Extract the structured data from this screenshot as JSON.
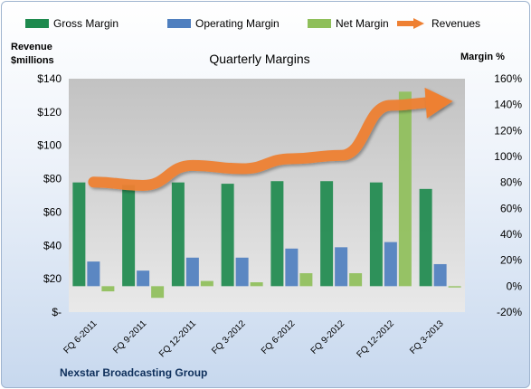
{
  "chart_data": {
    "type": "bar",
    "title": "Quarterly Margins",
    "footer": "Nexstar Broadcasting Group",
    "left_axis_title_line1": "Revenue",
    "left_axis_title_line2": "$millions",
    "right_axis_title": "Margin %",
    "categories": [
      "FQ 6-2011",
      "FQ 9-2011",
      "FQ 12-2011",
      "FQ 3-2012",
      "FQ 6-2012",
      "FQ 9-2012",
      "FQ 12-2012",
      "FQ 3-2013"
    ],
    "series": [
      {
        "name": "Gross Margin",
        "type": "bar",
        "axis": "right",
        "color": "#1e8a4e",
        "values": [
          80,
          78,
          80,
          79,
          81,
          81,
          80,
          75
        ]
      },
      {
        "name": "Operating Margin",
        "type": "bar",
        "axis": "right",
        "color": "#4f7fbf",
        "values": [
          19,
          12,
          22,
          22,
          29,
          30,
          34,
          17
        ]
      },
      {
        "name": "Net Margin",
        "type": "bar",
        "axis": "right",
        "color": "#8fbf5a",
        "values": [
          -4,
          -9,
          4,
          3,
          10,
          10,
          150,
          -1
        ]
      },
      {
        "name": "Revenues",
        "type": "line",
        "axis": "left",
        "color": "#ee8033",
        "values": [
          78,
          76,
          88,
          86,
          92,
          94,
          124,
          126
        ]
      }
    ],
    "left_axis": {
      "min": 0,
      "max": 140,
      "step": 20,
      "tick_labels": [
        "$-",
        "$20",
        "$40",
        "$60",
        "$80",
        "$100",
        "$120",
        "$140"
      ]
    },
    "right_axis": {
      "min": -20,
      "max": 160,
      "step": 20,
      "tick_labels": [
        "-20%",
        "0%",
        "20%",
        "40%",
        "60%",
        "80%",
        "100%",
        "120%",
        "140%",
        "160%"
      ]
    },
    "legend_position": "top",
    "grid": false
  }
}
